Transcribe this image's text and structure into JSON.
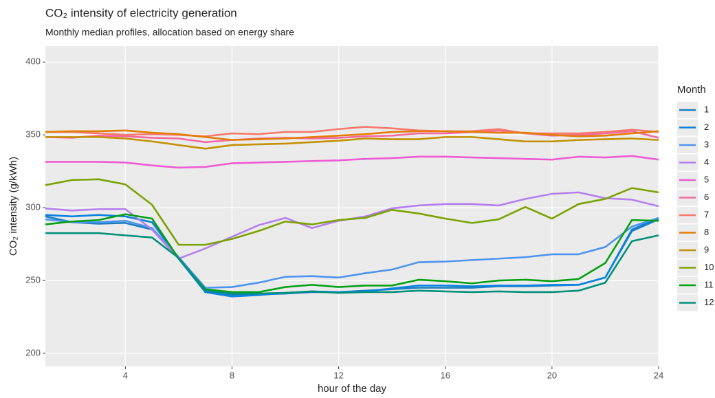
{
  "chart_data": {
    "type": "line",
    "title": "CO₂ intensity of electricity generation",
    "subtitle": "Monthly median profiles, allocation based on energy share",
    "x_label": "hour of the day",
    "y_label": "CO₂ intensity (g/kWh)",
    "legend_title": "Month",
    "legend_position": "right",
    "grid": true,
    "x": [
      1,
      2,
      3,
      4,
      5,
      6,
      7,
      8,
      9,
      10,
      11,
      12,
      13,
      14,
      15,
      16,
      17,
      18,
      19,
      20,
      21,
      22,
      23,
      24
    ],
    "xlim": [
      1,
      24
    ],
    "xticks": [
      4,
      8,
      12,
      16,
      20,
      24
    ],
    "ylim": [
      191,
      411
    ],
    "yticks": [
      200,
      250,
      300,
      350,
      400
    ],
    "series": [
      {
        "name": "1",
        "color": "#1b7fbf",
        "values": [
          294,
          290,
          289,
          289.5,
          285,
          265,
          242,
          240,
          240.5,
          241,
          242,
          242,
          243,
          244,
          245,
          245,
          245,
          246,
          246,
          246.5,
          247,
          252,
          284,
          292
        ]
      },
      {
        "name": "2",
        "color": "#0a82e0",
        "values": [
          295,
          294,
          295,
          294,
          290,
          265,
          242,
          239,
          240,
          241.5,
          242.5,
          242,
          242.5,
          244.5,
          246.5,
          246.5,
          246,
          246.5,
          246.5,
          247,
          247,
          252,
          285,
          293
        ]
      },
      {
        "name": "3",
        "color": "#4d94f0",
        "values": [
          292,
          290,
          290,
          291,
          286,
          266,
          245,
          245.5,
          248.5,
          252.5,
          253,
          252,
          255,
          257.5,
          262.5,
          263,
          264,
          265,
          266,
          268,
          268,
          273,
          287,
          293
        ]
      },
      {
        "name": "4",
        "color": "#b47ef0",
        "values": [
          299.5,
          298,
          299,
          299,
          285,
          265,
          272,
          280,
          288,
          293,
          286,
          291,
          294,
          299.5,
          301.5,
          302.5,
          302.5,
          301.5,
          306,
          309.5,
          310.5,
          306.5,
          305.5,
          301
        ]
      },
      {
        "name": "5",
        "color": "#ee5cd2",
        "values": [
          331.5,
          331.5,
          331.5,
          331,
          329,
          327.5,
          328,
          330.5,
          331,
          331.5,
          332,
          332.5,
          333.5,
          334,
          335,
          335,
          334.5,
          334,
          333.5,
          333,
          335,
          334.5,
          335.5,
          333
        ]
      },
      {
        "name": "6",
        "color": "#f46aa0",
        "values": [
          348.5,
          348,
          349.5,
          349,
          348,
          347.5,
          345,
          346.5,
          347.5,
          348,
          347.5,
          348,
          349,
          349.5,
          351,
          351,
          352,
          353,
          351,
          349.5,
          350,
          351,
          352.5,
          348
        ]
      },
      {
        "name": "7",
        "color": "#f8796d",
        "values": [
          352,
          352,
          351,
          350,
          350.5,
          350,
          349,
          351,
          350.5,
          352,
          352,
          354,
          355.5,
          354.5,
          353,
          352.5,
          352.5,
          354,
          351,
          351,
          351,
          352,
          353.5,
          352
        ]
      },
      {
        "name": "8",
        "color": "#e27d05",
        "values": [
          352,
          352.5,
          352.5,
          353,
          351.5,
          350.5,
          348.5,
          346.5,
          347,
          347.5,
          348.5,
          349.5,
          350.5,
          352,
          352.5,
          352.5,
          352,
          351.5,
          351.5,
          350,
          349,
          349.5,
          351,
          352.5
        ]
      },
      {
        "name": "9",
        "color": "#c29100",
        "values": [
          348.5,
          348.5,
          348.5,
          347.5,
          345.5,
          343,
          340.5,
          343,
          343.5,
          344,
          345,
          346,
          347.5,
          347,
          347,
          348.5,
          348.5,
          347,
          345.5,
          345.5,
          346.5,
          347,
          347.5,
          346.5
        ]
      },
      {
        "name": "10",
        "color": "#7aa300",
        "values": [
          315.5,
          319,
          319.5,
          316,
          302,
          274.5,
          274.5,
          278.5,
          284,
          290.5,
          288.5,
          291.5,
          293,
          298.5,
          296,
          292.5,
          289.5,
          292,
          300.5,
          292.5,
          302.5,
          306,
          313.5,
          310.5
        ]
      },
      {
        "name": "11",
        "color": "#05a012",
        "values": [
          288.5,
          290.5,
          291.5,
          295.5,
          292.5,
          265,
          244,
          242,
          242,
          245.5,
          247,
          245.5,
          246.5,
          246.5,
          250.5,
          249.5,
          248,
          250,
          250.5,
          249.5,
          251,
          262,
          291.5,
          291
        ]
      },
      {
        "name": "12",
        "color": "#00907a",
        "values": [
          282.5,
          282.5,
          282.5,
          281,
          279.5,
          265.5,
          243,
          241,
          241,
          241.5,
          242.5,
          241.5,
          242,
          242,
          243,
          242.5,
          242,
          242.5,
          242,
          242,
          243,
          248.5,
          277,
          281
        ]
      }
    ]
  }
}
